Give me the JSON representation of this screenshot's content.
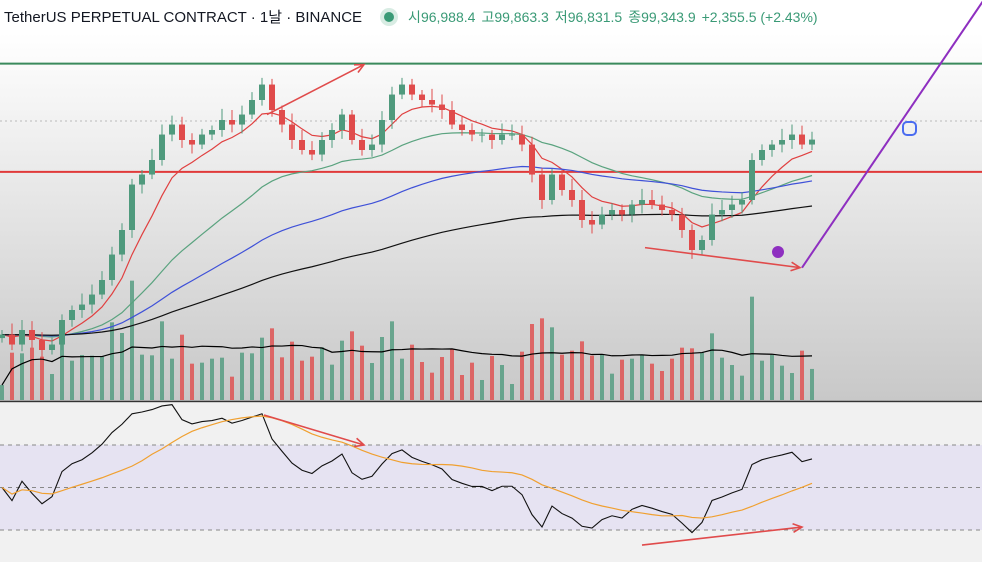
{
  "header": {
    "title": "TetherUS PERPETUAL CONTRACT · 1날 · BINANCE",
    "open_label": "시",
    "open": "96,988.4",
    "high_label": "고",
    "high": "99,863.3",
    "low_label": "저",
    "low": "96,831.5",
    "close_label": "종",
    "close": "99,343.9",
    "change": "+2,355.5 (+2.43%)"
  },
  "colors": {
    "up": "#4f9a7d",
    "down": "#e04b4b",
    "ma_fast": "#e04040",
    "ma_mid": "#5aa37f",
    "ma_slow": "#3f51d8",
    "ma_long": "#111111",
    "rsi": "#111111",
    "rsi_ma": "#f0a030",
    "trend": "#8e2fc0",
    "arrows": "#e04b4b",
    "resistance": "#3a8a5c",
    "support": "#e03a3a"
  },
  "chart_data": [
    {
      "type": "candlestick",
      "title": "",
      "ylim": [
        70700,
        114700
      ],
      "closes": [
        77900,
        76800,
        78400,
        77300,
        76200,
        76800,
        79500,
        80600,
        81200,
        82300,
        83900,
        86700,
        89400,
        94400,
        95500,
        97100,
        99900,
        101000,
        99300,
        98800,
        99900,
        100400,
        101500,
        101000,
        102100,
        103700,
        105400,
        102600,
        101000,
        99300,
        98200,
        97700,
        99300,
        100400,
        102100,
        99300,
        98200,
        98800,
        101500,
        104300,
        105400,
        104300,
        103700,
        103200,
        102600,
        101000,
        100400,
        99900,
        99900,
        99300,
        99900,
        99900,
        98800,
        95500,
        92700,
        95500,
        93800,
        92700,
        90500,
        90000,
        91100,
        91600,
        91100,
        92200,
        92700,
        92200,
        91600,
        91100,
        89400,
        87200,
        88300,
        91100,
        91600,
        92200,
        92700,
        97100,
        98200,
        98800,
        99300,
        99900,
        98800,
        99343.9
      ],
      "moving_averages": [
        {
          "color": "ma_fast",
          "period": 7
        },
        {
          "color": "ma_mid",
          "period": 25
        },
        {
          "color": "ma_slow",
          "period": 50
        },
        {
          "color": "ma_long",
          "period": 100
        }
      ],
      "horizontal_lines": [
        {
          "price": 107700,
          "color": "resistance"
        },
        {
          "price": 95800,
          "color": "support"
        }
      ],
      "drawings": [
        {
          "kind": "arrow",
          "from": [
            26.5,
            102100
          ],
          "to": [
            36.2,
            107600
          ]
        },
        {
          "kind": "arrow",
          "from": [
            64.3,
            87460
          ],
          "to": [
            79.8,
            85260
          ]
        },
        {
          "kind": "trendline",
          "from": [
            80,
            85260
          ],
          "to": [
            98.2,
            114740
          ]
        }
      ]
    },
    {
      "type": "line",
      "title": "",
      "ylim": [
        0,
        100
      ],
      "bands": [
        70,
        50,
        30
      ],
      "indicator_period": 14,
      "drawings": [
        {
          "kind": "arrow",
          "from": [
            26.2,
            84.1
          ],
          "to": [
            36.2,
            70
          ]
        },
        {
          "kind": "arrow",
          "from": [
            64,
            22.9
          ],
          "to": [
            80,
            31.4
          ]
        }
      ]
    }
  ]
}
